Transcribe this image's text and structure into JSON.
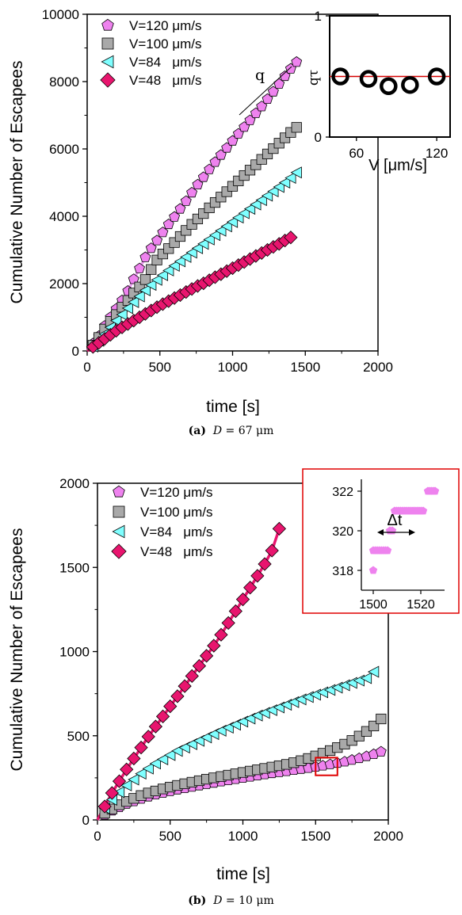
{
  "colors": {
    "v120": "#ee82ee",
    "v100": "#a9a9a9",
    "v84": "#7fffff",
    "v48": "#e8156e",
    "fit120": "#f0a0f4",
    "fit100": "#c9c9c9",
    "fit84": "#9ff6f6",
    "fit48": "#e8156e",
    "inset_ref": "#d40000",
    "box": "#e00000"
  },
  "captions": {
    "a": {
      "label": "(a)",
      "var": "D",
      "value": " = 67 μm"
    },
    "b": {
      "label": "(b)",
      "var": "D",
      "value": " = 10 μm"
    }
  },
  "chart_data": [
    {
      "panel": "a",
      "type": "scatter",
      "xlabel": "time [s]",
      "ylabel": "Cumulative Number of Escapees",
      "xlim": [
        0,
        2000
      ],
      "ylim": [
        0,
        10000
      ],
      "xticks": [
        "0",
        "500",
        "1000",
        "1500",
        "2000"
      ],
      "yticks": [
        "0",
        "2000",
        "4000",
        "6000",
        "8000",
        "10000"
      ],
      "annotation": "q",
      "legend_position": "top-left",
      "series": [
        {
          "name": "V=120 μm/s",
          "marker": "pentagon",
          "color_key": "v120",
          "x": [
            40,
            80,
            120,
            160,
            200,
            240,
            280,
            320,
            360,
            400,
            440,
            480,
            520,
            560,
            600,
            640,
            680,
            720,
            760,
            800,
            840,
            880,
            920,
            960,
            1000,
            1040,
            1080,
            1120,
            1160,
            1200,
            1240,
            1280,
            1320,
            1360,
            1400,
            1440
          ],
          "y": [
            220,
            440,
            740,
            1000,
            1250,
            1500,
            1780,
            2130,
            2450,
            2780,
            3050,
            3280,
            3520,
            3760,
            3980,
            4220,
            4450,
            4700,
            4940,
            5160,
            5390,
            5610,
            5820,
            6030,
            6240,
            6450,
            6650,
            6850,
            7060,
            7260,
            7480,
            7700,
            7930,
            8160,
            8380,
            8580
          ]
        },
        {
          "name": "V=100 μm/s",
          "marker": "square",
          "color_key": "v100",
          "x": [
            40,
            80,
            120,
            160,
            200,
            240,
            280,
            320,
            360,
            400,
            440,
            480,
            520,
            560,
            600,
            640,
            680,
            720,
            760,
            800,
            840,
            880,
            920,
            960,
            1000,
            1040,
            1080,
            1120,
            1160,
            1200,
            1240,
            1280,
            1320,
            1360,
            1400,
            1440
          ],
          "y": [
            170,
            400,
            650,
            880,
            1080,
            1300,
            1500,
            1720,
            1900,
            2120,
            2420,
            2700,
            2880,
            3040,
            3220,
            3400,
            3580,
            3760,
            3920,
            4080,
            4250,
            4410,
            4570,
            4730,
            4890,
            5050,
            5210,
            5370,
            5530,
            5690,
            5850,
            6010,
            6170,
            6330,
            6490,
            6640
          ]
        },
        {
          "name": "V=84   μm/s",
          "marker": "triangle-left",
          "color_key": "v84",
          "x": [
            40,
            80,
            120,
            160,
            200,
            240,
            280,
            320,
            360,
            400,
            440,
            480,
            520,
            560,
            600,
            640,
            680,
            720,
            760,
            800,
            840,
            880,
            920,
            960,
            1000,
            1040,
            1080,
            1120,
            1160,
            1200,
            1240,
            1280,
            1320,
            1360,
            1400,
            1440
          ],
          "y": [
            130,
            300,
            500,
            700,
            900,
            1080,
            1270,
            1450,
            1620,
            1800,
            1960,
            2110,
            2250,
            2390,
            2530,
            2660,
            2790,
            2920,
            3050,
            3180,
            3310,
            3440,
            3570,
            3700,
            3830,
            3960,
            4090,
            4220,
            4350,
            4480,
            4610,
            4740,
            4870,
            5000,
            5140,
            5300
          ]
        },
        {
          "name": "V=48   μm/s",
          "marker": "diamond",
          "color_key": "v48",
          "x": [
            40,
            80,
            120,
            160,
            200,
            240,
            280,
            320,
            360,
            400,
            440,
            480,
            520,
            560,
            600,
            640,
            680,
            720,
            760,
            800,
            840,
            880,
            920,
            960,
            1000,
            1040,
            1080,
            1120,
            1160,
            1200,
            1240,
            1280,
            1320,
            1360,
            1400
          ],
          "y": [
            120,
            240,
            360,
            480,
            600,
            700,
            800,
            900,
            1000,
            1100,
            1200,
            1300,
            1390,
            1480,
            1570,
            1660,
            1750,
            1840,
            1930,
            2010,
            2100,
            2190,
            2280,
            2370,
            2460,
            2550,
            2640,
            2730,
            2820,
            2910,
            3000,
            3090,
            3180,
            3280,
            3370
          ]
        }
      ],
      "inset": {
        "type": "scatter",
        "xlabel": "V [μm/s]",
        "ylabel": "qτ",
        "xlim": [
          40,
          130
        ],
        "ylim": [
          0,
          1
        ],
        "xticks": [
          "60",
          "120"
        ],
        "yticks": [
          "0",
          "1"
        ],
        "reference_line_y": 0.5,
        "x": [
          48,
          69,
          84,
          100,
          120
        ],
        "y": [
          0.5,
          0.48,
          0.42,
          0.43,
          0.5
        ]
      }
    },
    {
      "panel": "b",
      "type": "scatter",
      "xlabel": "time [s]",
      "ylabel": "Cumulative Number of Escapees",
      "xlim": [
        0,
        2000
      ],
      "ylim": [
        0,
        2000
      ],
      "xticks": [
        "0",
        "500",
        "1000",
        "1500",
        "2000"
      ],
      "yticks": [
        "0",
        "500",
        "1000",
        "1500",
        "2000"
      ],
      "legend_position": "top-left",
      "series": [
        {
          "name": "V=120 μm/s",
          "marker": "pentagon",
          "color_key": "v120",
          "x": [
            50,
            100,
            150,
            200,
            250,
            300,
            350,
            400,
            450,
            500,
            550,
            600,
            650,
            700,
            750,
            800,
            850,
            900,
            950,
            1000,
            1050,
            1100,
            1150,
            1200,
            1250,
            1300,
            1350,
            1400,
            1450,
            1500,
            1550,
            1600,
            1650,
            1700,
            1750,
            1800,
            1850,
            1900,
            1950
          ],
          "y": [
            30,
            55,
            75,
            95,
            110,
            125,
            138,
            150,
            160,
            170,
            180,
            188,
            196,
            204,
            212,
            220,
            228,
            235,
            242,
            249,
            256,
            263,
            270,
            277,
            283,
            289,
            296,
            302,
            308,
            315,
            322,
            330,
            338,
            346,
            356,
            366,
            378,
            390,
            405
          ]
        },
        {
          "name": "V=100 μm/s",
          "marker": "square",
          "color_key": "v100",
          "x": [
            50,
            100,
            150,
            200,
            250,
            300,
            350,
            400,
            450,
            500,
            550,
            600,
            650,
            700,
            750,
            800,
            850,
            900,
            950,
            1000,
            1050,
            1100,
            1150,
            1200,
            1250,
            1300,
            1350,
            1400,
            1450,
            1500,
            1550,
            1600,
            1650,
            1700,
            1750,
            1800,
            1850,
            1900,
            1950
          ],
          "y": [
            40,
            65,
            90,
            110,
            128,
            145,
            160,
            172,
            184,
            195,
            205,
            215,
            224,
            233,
            242,
            250,
            258,
            266,
            274,
            282,
            290,
            298,
            306,
            314,
            322,
            330,
            340,
            352,
            365,
            380,
            396,
            412,
            430,
            450,
            472,
            498,
            526,
            558,
            600
          ]
        },
        {
          "name": "V=84   μm/s",
          "marker": "triangle-left",
          "color_key": "v84",
          "x": [
            50,
            100,
            150,
            200,
            250,
            300,
            350,
            400,
            450,
            500,
            550,
            600,
            650,
            700,
            750,
            800,
            850,
            900,
            950,
            1000,
            1050,
            1100,
            1150,
            1200,
            1250,
            1300,
            1350,
            1400,
            1450,
            1500,
            1550,
            1600,
            1650,
            1700,
            1750,
            1800,
            1850,
            1900
          ],
          "y": [
            70,
            120,
            165,
            205,
            240,
            275,
            305,
            335,
            360,
            385,
            410,
            430,
            450,
            470,
            490,
            510,
            530,
            548,
            566,
            584,
            602,
            620,
            636,
            652,
            668,
            684,
            700,
            716,
            730,
            744,
            758,
            772,
            786,
            800,
            814,
            828,
            842,
            880
          ]
        },
        {
          "name": "V=48   μm/s",
          "marker": "diamond",
          "color_key": "v48",
          "x": [
            50,
            100,
            150,
            200,
            250,
            300,
            350,
            400,
            450,
            500,
            550,
            600,
            650,
            700,
            750,
            800,
            850,
            900,
            950,
            1000,
            1050,
            1100,
            1150,
            1200,
            1250
          ],
          "y": [
            80,
            160,
            230,
            300,
            365,
            430,
            495,
            555,
            615,
            675,
            735,
            795,
            855,
            915,
            975,
            1035,
            1100,
            1170,
            1240,
            1310,
            1380,
            1450,
            1520,
            1600,
            1730
          ]
        }
      ],
      "highlight_box": {
        "x0": 1500,
        "x1": 1650,
        "y0": 265,
        "y1": 370
      },
      "inset": {
        "type": "scatter",
        "xlim": [
          1495,
          1530
        ],
        "ylim": [
          317,
          322.6
        ],
        "xticks": [
          "1500",
          "1520"
        ],
        "yticks": [
          "318",
          "320",
          "322"
        ],
        "annotation": "Δt",
        "steps": [
          {
            "y": 318,
            "x_from": 1500,
            "x_to": 1500
          },
          {
            "y": 319,
            "x_from": 1500,
            "x_to": 1506
          },
          {
            "y": 320,
            "x_from": 1507,
            "x_to": 1508
          },
          {
            "y": 321,
            "x_from": 1509,
            "x_to": 1521
          },
          {
            "y": 322,
            "x_from": 1523,
            "x_to": 1526
          }
        ]
      }
    }
  ]
}
